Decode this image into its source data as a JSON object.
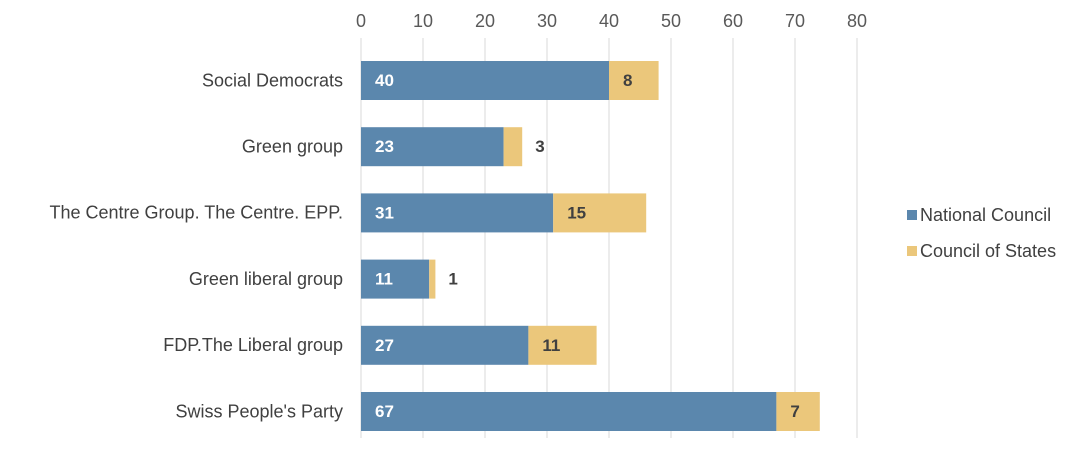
{
  "chart_data": {
    "type": "bar",
    "orientation": "horizontal",
    "stacked": true,
    "title": "",
    "xlabel": "",
    "ylabel": "",
    "xlim": [
      0,
      80
    ],
    "ticks": [
      "0",
      "10",
      "20",
      "30",
      "40",
      "50",
      "60",
      "70",
      "80"
    ],
    "tick_values": [
      0,
      10,
      20,
      30,
      40,
      50,
      60,
      70,
      80
    ],
    "grid": true,
    "categories": [
      "Social Democrats",
      "Green group",
      "The Centre Group. The Centre. EPP.",
      "Green liberal group",
      "FDP.The Liberal group",
      "Swiss People's Party"
    ],
    "series": [
      {
        "name": "National Council",
        "color": "#5b87ad",
        "label_color": "#ffffff",
        "values": [
          40,
          23,
          31,
          11,
          27,
          67
        ],
        "labels": [
          "40",
          "23",
          "31",
          "11",
          "27",
          "67"
        ]
      },
      {
        "name": "Council of States",
        "color": "#ebc77b",
        "label_color": "#404040",
        "values": [
          8,
          3,
          15,
          1,
          11,
          7
        ],
        "labels": [
          "8",
          "3",
          "15",
          "1",
          "11",
          "7"
        ]
      }
    ],
    "legend_position": "right"
  }
}
